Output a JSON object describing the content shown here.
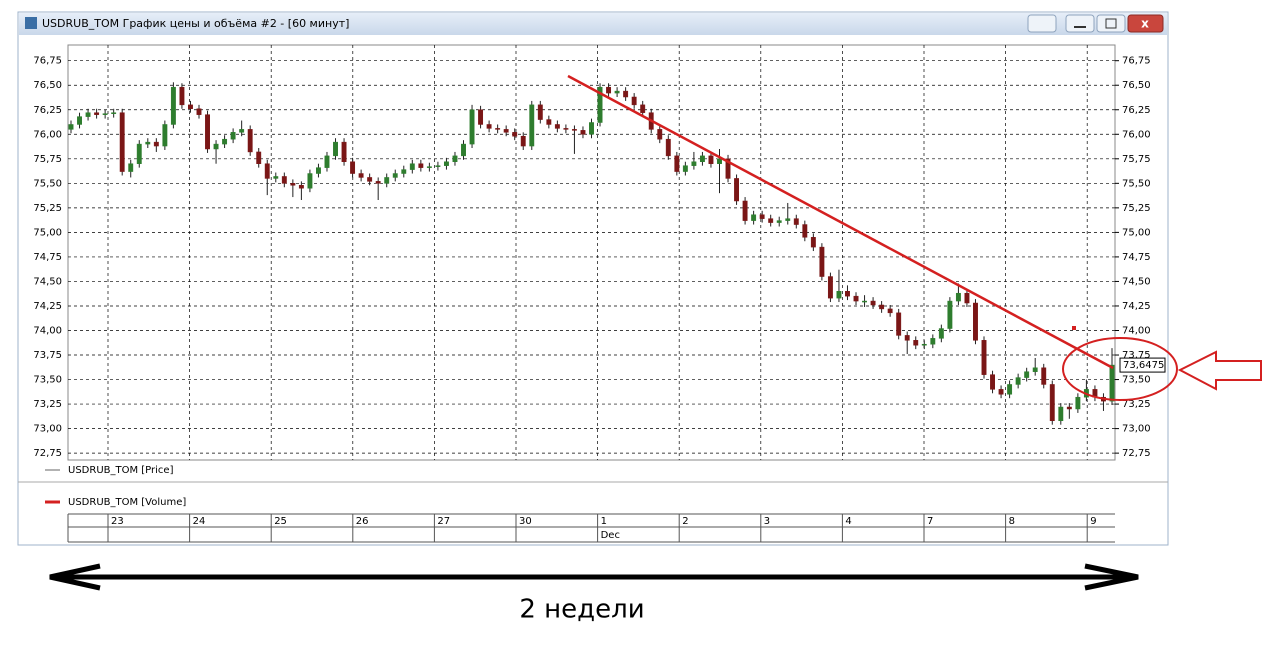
{
  "window": {
    "title": "USDRUB_TOM График цены и объёма #2 - [60 минут]"
  },
  "chart_data": {
    "type": "candlestick",
    "candles": [
      [
        76.05,
        76.14,
        76.01,
        76.1
      ],
      [
        76.1,
        76.22,
        76.06,
        76.18
      ],
      [
        76.18,
        76.26,
        76.14,
        76.22
      ],
      [
        76.22,
        76.26,
        76.16,
        76.2
      ],
      [
        76.2,
        76.25,
        76.16,
        76.21
      ],
      [
        76.21,
        76.26,
        76.17,
        76.22
      ],
      [
        76.22,
        76.26,
        75.58,
        75.62
      ],
      [
        75.62,
        75.74,
        75.56,
        75.7
      ],
      [
        75.7,
        75.94,
        75.66,
        75.9
      ],
      [
        75.9,
        75.96,
        75.86,
        75.92
      ],
      [
        75.92,
        75.96,
        75.82,
        75.88
      ],
      [
        75.88,
        76.14,
        75.84,
        76.1
      ],
      [
        76.1,
        76.53,
        76.06,
        76.48
      ],
      [
        76.48,
        76.52,
        76.26,
        76.3
      ],
      [
        76.3,
        76.34,
        76.22,
        76.26
      ],
      [
        76.26,
        76.3,
        76.16,
        76.2
      ],
      [
        76.2,
        76.24,
        75.81,
        75.85
      ],
      [
        75.85,
        75.94,
        75.7,
        75.9
      ],
      [
        75.9,
        75.99,
        75.86,
        75.95
      ],
      [
        75.95,
        76.06,
        75.91,
        76.02
      ],
      [
        76.02,
        76.14,
        75.98,
        76.05
      ],
      [
        76.05,
        76.09,
        75.78,
        75.82
      ],
      [
        75.82,
        75.86,
        75.66,
        75.7
      ],
      [
        75.7,
        75.74,
        75.38,
        75.55
      ],
      [
        75.55,
        75.61,
        75.51,
        75.57
      ],
      [
        75.57,
        75.61,
        75.46,
        75.5
      ],
      [
        75.5,
        75.54,
        75.36,
        75.48
      ],
      [
        75.48,
        75.52,
        75.33,
        75.45
      ],
      [
        75.45,
        75.64,
        75.41,
        75.6
      ],
      [
        75.6,
        75.7,
        75.56,
        75.66
      ],
      [
        75.66,
        75.82,
        75.62,
        75.78
      ],
      [
        75.78,
        75.96,
        75.74,
        75.92
      ],
      [
        75.92,
        75.96,
        75.68,
        75.72
      ],
      [
        75.72,
        75.76,
        75.56,
        75.6
      ],
      [
        75.6,
        75.64,
        75.52,
        75.56
      ],
      [
        75.56,
        75.6,
        75.48,
        75.52
      ],
      [
        75.52,
        75.56,
        75.33,
        75.5
      ],
      [
        75.5,
        75.6,
        75.46,
        75.56
      ],
      [
        75.56,
        75.64,
        75.52,
        75.6
      ],
      [
        75.6,
        75.68,
        75.56,
        75.64
      ],
      [
        75.64,
        75.74,
        75.6,
        75.7
      ],
      [
        75.7,
        75.74,
        75.62,
        75.66
      ],
      [
        75.66,
        75.71,
        75.62,
        75.67
      ],
      [
        75.67,
        75.72,
        75.63,
        75.68
      ],
      [
        75.68,
        75.76,
        75.64,
        75.72
      ],
      [
        75.72,
        75.82,
        75.68,
        75.78
      ],
      [
        75.78,
        75.94,
        75.74,
        75.9
      ],
      [
        75.9,
        76.3,
        75.86,
        76.25
      ],
      [
        76.25,
        76.29,
        76.06,
        76.1
      ],
      [
        76.1,
        76.14,
        76.02,
        76.06
      ],
      [
        76.06,
        76.1,
        76.01,
        76.05
      ],
      [
        76.05,
        76.09,
        75.98,
        76.02
      ],
      [
        76.02,
        76.06,
        75.94,
        75.98
      ],
      [
        75.98,
        76.02,
        75.84,
        75.88
      ],
      [
        75.88,
        76.34,
        75.84,
        76.3
      ],
      [
        76.3,
        76.34,
        76.11,
        76.15
      ],
      [
        76.15,
        76.19,
        76.06,
        76.1
      ],
      [
        76.1,
        76.14,
        76.02,
        76.06
      ],
      [
        76.06,
        76.1,
        76.01,
        76.05
      ],
      [
        76.05,
        76.09,
        75.8,
        76.04
      ],
      [
        76.04,
        76.08,
        75.96,
        76.0
      ],
      [
        76.0,
        76.16,
        75.96,
        76.12
      ],
      [
        76.12,
        76.52,
        76.08,
        76.48
      ],
      [
        76.48,
        76.52,
        76.38,
        76.42
      ],
      [
        76.42,
        76.48,
        76.38,
        76.44
      ],
      [
        76.44,
        76.48,
        76.34,
        76.38
      ],
      [
        76.38,
        76.42,
        76.26,
        76.3
      ],
      [
        76.3,
        76.34,
        76.18,
        76.22
      ],
      [
        76.22,
        76.26,
        76.01,
        76.05
      ],
      [
        76.05,
        76.09,
        75.91,
        75.95
      ],
      [
        75.95,
        75.99,
        75.74,
        75.78
      ],
      [
        75.78,
        75.82,
        75.58,
        75.62
      ],
      [
        75.62,
        75.72,
        75.58,
        75.68
      ],
      [
        75.68,
        75.82,
        75.64,
        75.72
      ],
      [
        75.72,
        75.82,
        75.68,
        75.78
      ],
      [
        75.78,
        75.82,
        75.66,
        75.7
      ],
      [
        75.7,
        75.85,
        75.4,
        75.75
      ],
      [
        75.75,
        75.79,
        75.51,
        75.55
      ],
      [
        75.55,
        75.59,
        75.28,
        75.32
      ],
      [
        75.32,
        75.36,
        75.08,
        75.12
      ],
      [
        75.12,
        75.22,
        75.08,
        75.18
      ],
      [
        75.18,
        75.22,
        75.1,
        75.14
      ],
      [
        75.14,
        75.18,
        75.06,
        75.1
      ],
      [
        75.1,
        75.16,
        75.06,
        75.12
      ],
      [
        75.12,
        75.3,
        75.08,
        75.14
      ],
      [
        75.14,
        75.18,
        75.04,
        75.08
      ],
      [
        75.08,
        75.12,
        74.91,
        74.95
      ],
      [
        74.95,
        74.99,
        74.81,
        74.85
      ],
      [
        74.85,
        74.89,
        74.51,
        74.55
      ],
      [
        74.55,
        74.59,
        74.29,
        74.33
      ],
      [
        74.33,
        74.62,
        74.29,
        74.4
      ],
      [
        74.4,
        74.46,
        74.31,
        74.35
      ],
      [
        74.35,
        74.39,
        74.26,
        74.3
      ],
      [
        74.3,
        74.36,
        74.24,
        74.3
      ],
      [
        74.3,
        74.34,
        74.22,
        74.26
      ],
      [
        74.26,
        74.3,
        74.18,
        74.22
      ],
      [
        74.22,
        74.26,
        74.14,
        74.18
      ],
      [
        74.18,
        74.22,
        73.91,
        73.95
      ],
      [
        73.95,
        73.99,
        73.76,
        73.9
      ],
      [
        73.9,
        73.94,
        73.81,
        73.85
      ],
      [
        73.85,
        73.9,
        73.81,
        73.86
      ],
      [
        73.86,
        73.96,
        73.82,
        73.92
      ],
      [
        73.92,
        74.06,
        73.88,
        74.02
      ],
      [
        74.02,
        74.34,
        73.98,
        74.3
      ],
      [
        74.3,
        74.48,
        74.26,
        74.38
      ],
      [
        74.38,
        74.42,
        74.24,
        74.28
      ],
      [
        74.28,
        74.32,
        73.86,
        73.9
      ],
      [
        73.9,
        73.94,
        73.51,
        73.55
      ],
      [
        73.55,
        73.59,
        73.36,
        73.4
      ],
      [
        73.4,
        73.44,
        73.31,
        73.35
      ],
      [
        73.35,
        73.49,
        73.31,
        73.45
      ],
      [
        73.45,
        73.56,
        73.41,
        73.52
      ],
      [
        73.52,
        73.62,
        73.48,
        73.58
      ],
      [
        73.58,
        73.72,
        73.54,
        73.62
      ],
      [
        73.62,
        73.66,
        73.41,
        73.45
      ],
      [
        73.45,
        73.49,
        73.04,
        73.08
      ],
      [
        73.08,
        73.26,
        73.04,
        73.22
      ],
      [
        73.22,
        73.26,
        73.1,
        73.2
      ],
      [
        73.2,
        73.36,
        73.16,
        73.32
      ],
      [
        73.32,
        73.5,
        73.28,
        73.4
      ],
      [
        73.4,
        73.44,
        73.28,
        73.32
      ],
      [
        73.32,
        73.36,
        73.18,
        73.28
      ],
      [
        73.28,
        73.82,
        73.24,
        73.6475
      ]
    ],
    "last_label": "73,6475",
    "up_color": "#2e7d2e",
    "down_color": "#7a1616",
    "ylim": [
      72.68,
      76.91
    ],
    "yticks": [
      {
        "value": 72.75,
        "label": "72,75"
      },
      {
        "value": 73,
        "label": "73,00"
      },
      {
        "value": 73.25,
        "label": "73,25"
      },
      {
        "value": 73.5,
        "label": "73,50"
      },
      {
        "value": 73.75,
        "label": "73,75"
      },
      {
        "value": 74,
        "label": "74,00"
      },
      {
        "value": 74.25,
        "label": "74,25"
      },
      {
        "value": 74.5,
        "label": "74,50"
      },
      {
        "value": 74.75,
        "label": "74,75"
      },
      {
        "value": 75,
        "label": "75,00"
      },
      {
        "value": 75.25,
        "label": "75,25"
      },
      {
        "value": 75.5,
        "label": "75,50"
      },
      {
        "value": 75.75,
        "label": "75,75"
      },
      {
        "value": 76,
        "label": "76,00"
      },
      {
        "value": 76.25,
        "label": "76,25"
      },
      {
        "value": 76.5,
        "label": "76,50"
      },
      {
        "value": 76.75,
        "label": "76,75"
      }
    ],
    "grid": true,
    "legend": [
      {
        "name": "USDRUB_TOM [Price]",
        "color": "#666666"
      },
      {
        "name": "USDRUB_TOM [Volume]",
        "color": "#d42020"
      }
    ],
    "days": [
      "23",
      "24",
      "25",
      "26",
      "27",
      "30",
      "1",
      "2",
      "3",
      "4",
      "7",
      "8",
      "9"
    ],
    "month": "Dec"
  },
  "annotation": {
    "text": "2 недели"
  }
}
